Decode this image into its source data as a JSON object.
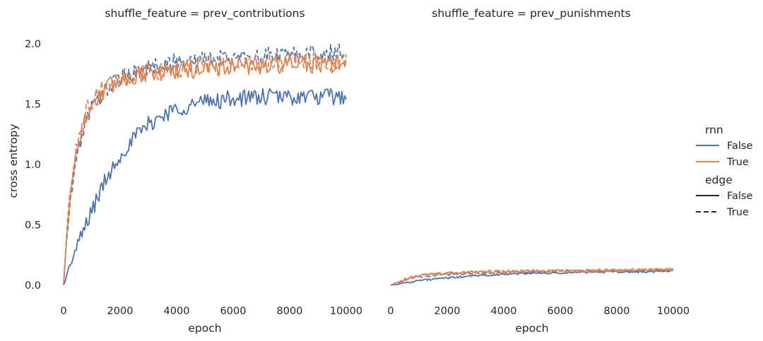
{
  "colors": {
    "False": "#4c72b0",
    "True": "#dd8452",
    "text": "#262626",
    "dash_key": "#262626"
  },
  "chart_data": {
    "type": "line",
    "ylabel": "cross entropy",
    "ylim": [
      -0.13,
      2.1
    ],
    "yticks": [
      "0.0",
      "0.5",
      "1.0",
      "1.5",
      "2.0"
    ],
    "ytick_values": [
      0,
      0.5,
      1.0,
      1.5,
      2.0
    ],
    "xticks": [
      "0",
      "2000",
      "4000",
      "6000",
      "8000",
      "10000"
    ],
    "xtick_values": [
      0,
      2000,
      4000,
      6000,
      8000,
      10000
    ],
    "xlim": [
      -300,
      10300
    ],
    "grid": false,
    "legend": {
      "placement": "right",
      "hue_title": "rnn",
      "hue_items": [
        {
          "label": "False",
          "key": "False"
        },
        {
          "label": "True",
          "key": "True"
        }
      ],
      "style_title": "edge",
      "style_items": [
        {
          "label": "False",
          "dash": "solid"
        },
        {
          "label": "True",
          "dash": "dashed"
        }
      ]
    },
    "facets": [
      {
        "title": "shuffle_feature = prev_contributions",
        "xlabel": "epoch",
        "series": [
          {
            "rnn": "False",
            "edge": "False",
            "x": [
              0,
              250,
              500,
              750,
              1000,
              1500,
              2000,
              2500,
              3000,
              3500,
              4000,
              4500,
              5000,
              5500,
              6000,
              6500,
              7000,
              7500,
              8000,
              8500,
              9000,
              9500,
              10000
            ],
            "y": [
              0.0,
              0.18,
              0.33,
              0.48,
              0.62,
              0.88,
              1.08,
              1.22,
              1.33,
              1.41,
              1.46,
              1.49,
              1.52,
              1.53,
              1.55,
              1.55,
              1.56,
              1.56,
              1.56,
              1.56,
              1.56,
              1.56,
              1.56
            ],
            "noise": 0.07
          },
          {
            "rnn": "False",
            "edge": "True",
            "x": [
              0,
              100,
              200,
              300,
              400,
              600,
              800,
              1000,
              1500,
              2000,
              2500,
              3000,
              3500,
              4000,
              5000,
              6000,
              7000,
              8000,
              9000,
              10000
            ],
            "y": [
              0.0,
              0.35,
              0.6,
              0.8,
              0.98,
              1.2,
              1.37,
              1.47,
              1.62,
              1.71,
              1.76,
              1.8,
              1.83,
              1.85,
              1.87,
              1.89,
              1.9,
              1.91,
              1.92,
              1.93
            ],
            "noise": 0.07
          },
          {
            "rnn": "True",
            "edge": "False",
            "x": [
              0,
              100,
              200,
              300,
              400,
              600,
              800,
              1000,
              1500,
              2000,
              2500,
              3000,
              3500,
              4000,
              5000,
              6000,
              7000,
              8000,
              9000,
              10000
            ],
            "y": [
              0.0,
              0.38,
              0.66,
              0.88,
              1.04,
              1.25,
              1.4,
              1.5,
              1.63,
              1.7,
              1.74,
              1.76,
              1.77,
              1.78,
              1.8,
              1.81,
              1.82,
              1.83,
              1.83,
              1.84
            ],
            "noise": 0.08
          },
          {
            "rnn": "True",
            "edge": "True",
            "x": [
              0,
              100,
              200,
              300,
              400,
              600,
              800,
              1000,
              1500,
              2000,
              2500,
              3000,
              3500,
              4000,
              5000,
              6000,
              7000,
              8000,
              9000,
              10000
            ],
            "y": [
              0.0,
              0.4,
              0.7,
              0.92,
              1.08,
              1.3,
              1.45,
              1.53,
              1.65,
              1.71,
              1.75,
              1.77,
              1.78,
              1.8,
              1.82,
              1.83,
              1.84,
              1.85,
              1.85,
              1.86
            ],
            "noise": 0.08
          }
        ]
      },
      {
        "title": "shuffle_feature = prev_punishments",
        "xlabel": "epoch",
        "series": [
          {
            "rnn": "False",
            "edge": "False",
            "x": [
              0,
              500,
              1000,
              2000,
              3000,
              4000,
              5000,
              6000,
              7000,
              8000,
              9000,
              10000
            ],
            "y": [
              0.0,
              0.02,
              0.04,
              0.06,
              0.08,
              0.09,
              0.1,
              0.1,
              0.11,
              0.11,
              0.11,
              0.12
            ],
            "noise": 0.008
          },
          {
            "rnn": "False",
            "edge": "True",
            "x": [
              0,
              500,
              1000,
              2000,
              3000,
              4000,
              5000,
              6000,
              7000,
              8000,
              9000,
              10000
            ],
            "y": [
              0.0,
              0.04,
              0.07,
              0.09,
              0.1,
              0.11,
              0.11,
              0.12,
              0.12,
              0.12,
              0.12,
              0.12
            ],
            "noise": 0.008
          },
          {
            "rnn": "True",
            "edge": "False",
            "x": [
              0,
              500,
              1000,
              2000,
              3000,
              4000,
              5000,
              6000,
              7000,
              8000,
              9000,
              10000
            ],
            "y": [
              0.0,
              0.05,
              0.08,
              0.1,
              0.11,
              0.11,
              0.12,
              0.12,
              0.12,
              0.12,
              0.13,
              0.13
            ],
            "noise": 0.01
          },
          {
            "rnn": "True",
            "edge": "True",
            "x": [
              0,
              500,
              1000,
              2000,
              3000,
              4000,
              5000,
              6000,
              7000,
              8000,
              9000,
              10000
            ],
            "y": [
              0.0,
              0.05,
              0.08,
              0.1,
              0.11,
              0.12,
              0.12,
              0.12,
              0.12,
              0.13,
              0.13,
              0.13
            ],
            "noise": 0.01
          }
        ]
      }
    ]
  }
}
